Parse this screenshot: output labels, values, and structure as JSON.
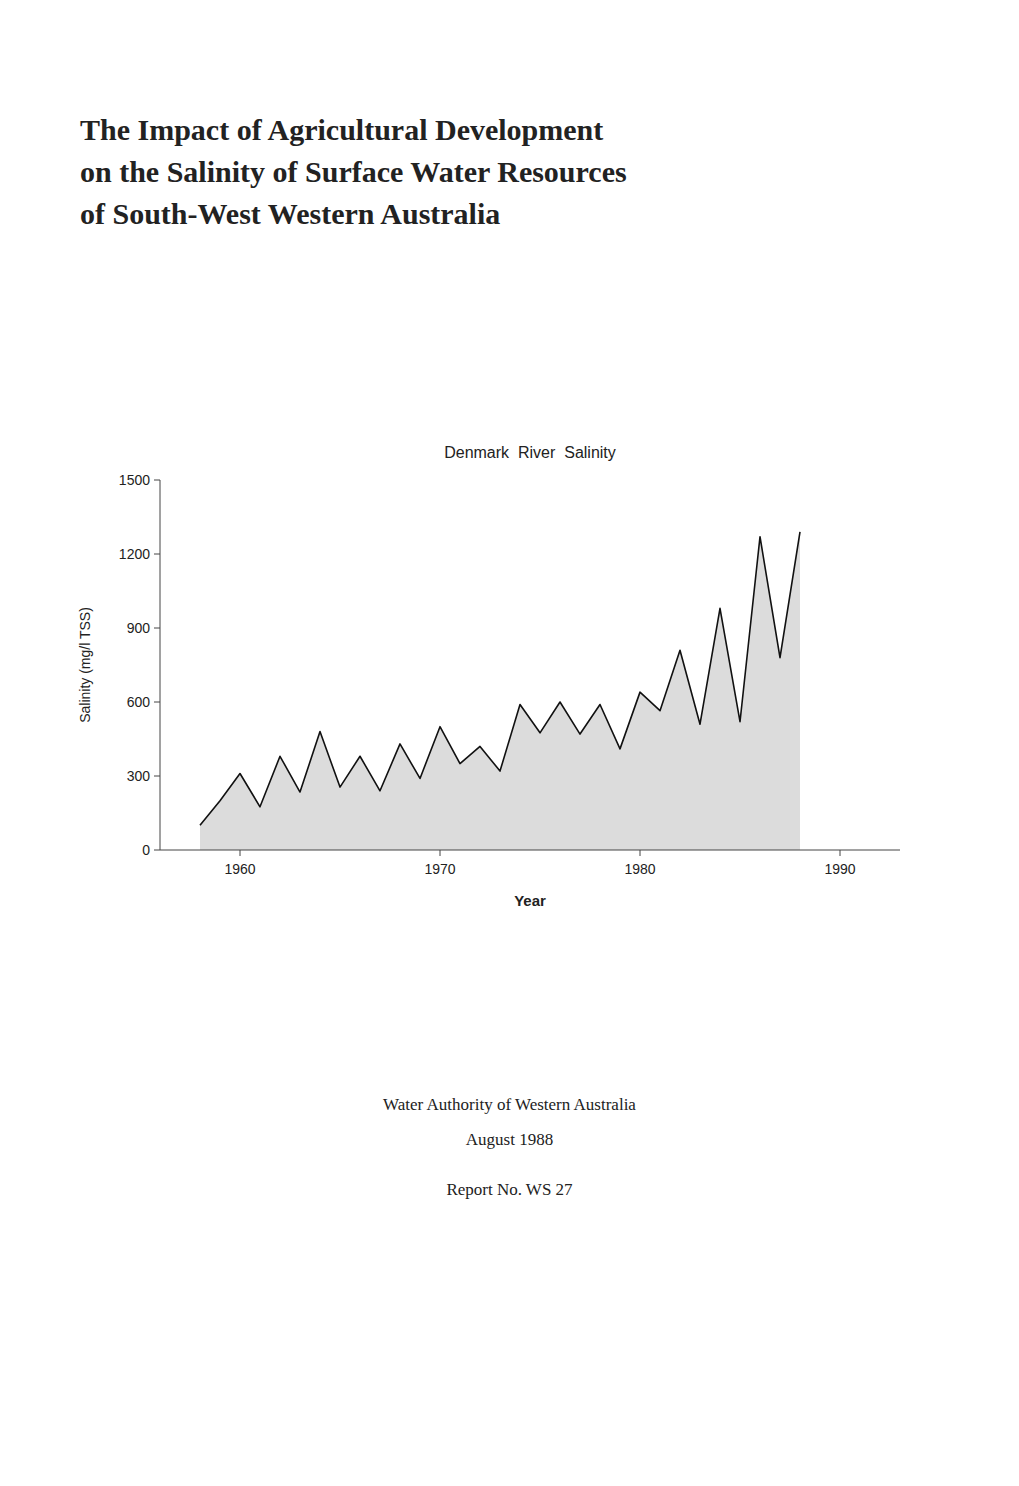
{
  "title": [
    "The Impact of Agricultural Development",
    "on the Salinity of Surface Water Resources",
    "of South-West Western Australia"
  ],
  "chart_data": {
    "type": "area",
    "title": "Denmark  River  Salinity",
    "xlabel": "Year",
    "ylabel": "Salinity (mg/l TSS)",
    "x": [
      1958,
      1959,
      1960,
      1961,
      1962,
      1963,
      1964,
      1965,
      1966,
      1967,
      1968,
      1969,
      1970,
      1971,
      1972,
      1973,
      1974,
      1975,
      1976,
      1977,
      1978,
      1979,
      1980,
      1981,
      1982,
      1983,
      1984,
      1985,
      1986,
      1987,
      1988
    ],
    "values": [
      100,
      200,
      310,
      175,
      380,
      235,
      480,
      255,
      380,
      240,
      430,
      290,
      500,
      350,
      420,
      320,
      590,
      475,
      600,
      470,
      590,
      410,
      640,
      565,
      810,
      510,
      980,
      520,
      1270,
      780,
      1290
    ],
    "xlim": [
      1956,
      1993
    ],
    "ylim": [
      0,
      1500
    ],
    "xticks": [
      1960,
      1970,
      1980,
      1990
    ],
    "yticks": [
      0,
      300,
      600,
      900,
      1200,
      1500
    ],
    "color": "#111111",
    "grid": false
  },
  "footer": [
    "Water Authority of Western Australia",
    "August 1988",
    "Report No. WS 27"
  ]
}
